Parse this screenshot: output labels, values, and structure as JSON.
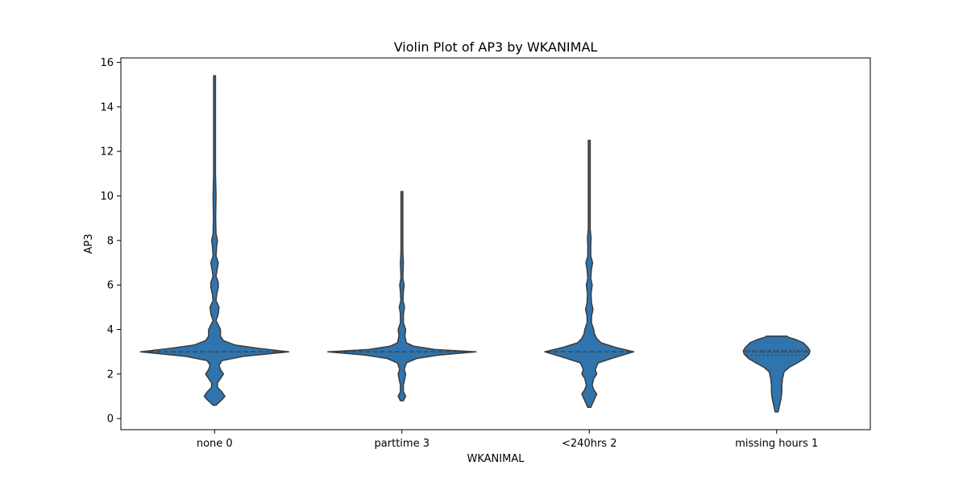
{
  "chart_data": {
    "type": "violin",
    "title": "Violin Plot of AP3 by WKANIMAL",
    "xlabel": "WKANIMAL",
    "ylabel": "AP3",
    "ylim": [
      -0.5,
      16.2
    ],
    "yticks": [
      0,
      2,
      4,
      6,
      8,
      10,
      12,
      14,
      16
    ],
    "grid": false,
    "legend": "none",
    "categories": [
      "none 0",
      "parttime 3",
      "<240hrs 2",
      "missing hours 1"
    ],
    "violin_color": "#2f74ad",
    "outline_color": "#3b3b3b",
    "violins": [
      {
        "category": "none 0",
        "y_min": 0.6,
        "y_max": 15.4,
        "median": 3,
        "quartiles": [
          3,
          3
        ],
        "density": [
          [
            0.6,
            0.02
          ],
          [
            0.85,
            0.1
          ],
          [
            1.0,
            0.14
          ],
          [
            1.2,
            0.1
          ],
          [
            1.4,
            0.04
          ],
          [
            1.6,
            0.04
          ],
          [
            1.8,
            0.08
          ],
          [
            2.0,
            0.12
          ],
          [
            2.2,
            0.08
          ],
          [
            2.4,
            0.06
          ],
          [
            2.6,
            0.1
          ],
          [
            2.8,
            0.4
          ],
          [
            3.0,
            1.0
          ],
          [
            3.15,
            0.6
          ],
          [
            3.3,
            0.28
          ],
          [
            3.5,
            0.12
          ],
          [
            3.7,
            0.08
          ],
          [
            3.9,
            0.08
          ],
          [
            4.0,
            0.08
          ],
          [
            4.2,
            0.05
          ],
          [
            4.4,
            0.02
          ],
          [
            4.7,
            0.05
          ],
          [
            5.0,
            0.06
          ],
          [
            5.3,
            0.02
          ],
          [
            5.6,
            0.03
          ],
          [
            5.9,
            0.05
          ],
          [
            6.1,
            0.05
          ],
          [
            6.4,
            0.02
          ],
          [
            6.8,
            0.04
          ],
          [
            7.0,
            0.05
          ],
          [
            7.3,
            0.02
          ],
          [
            7.8,
            0.03
          ],
          [
            8.0,
            0.04
          ],
          [
            8.3,
            0.02
          ],
          [
            9.0,
            0.015
          ],
          [
            10.0,
            0.02
          ],
          [
            11.0,
            0.012
          ],
          [
            12.0,
            0.01
          ],
          [
            13.0,
            0.01
          ],
          [
            14.0,
            0.01
          ],
          [
            15.4,
            0.01
          ]
        ]
      },
      {
        "category": "parttime 3",
        "y_min": 0.8,
        "y_max": 10.2,
        "median": 3,
        "quartiles": [
          3,
          3
        ],
        "density": [
          [
            0.8,
            0.02
          ],
          [
            1.0,
            0.05
          ],
          [
            1.2,
            0.02
          ],
          [
            1.5,
            0.02
          ],
          [
            1.8,
            0.04
          ],
          [
            2.0,
            0.05
          ],
          [
            2.2,
            0.03
          ],
          [
            2.5,
            0.06
          ],
          [
            2.7,
            0.2
          ],
          [
            2.85,
            0.5
          ],
          [
            3.0,
            1.0
          ],
          [
            3.1,
            0.45
          ],
          [
            3.25,
            0.16
          ],
          [
            3.4,
            0.06
          ],
          [
            3.7,
            0.04
          ],
          [
            4.0,
            0.05
          ],
          [
            4.3,
            0.02
          ],
          [
            4.7,
            0.02
          ],
          [
            5.0,
            0.035
          ],
          [
            5.3,
            0.015
          ],
          [
            5.7,
            0.02
          ],
          [
            6.0,
            0.03
          ],
          [
            6.3,
            0.012
          ],
          [
            7.0,
            0.02
          ],
          [
            7.5,
            0.01
          ],
          [
            8.5,
            0.01
          ],
          [
            9.5,
            0.01
          ],
          [
            10.2,
            0.01
          ]
        ]
      },
      {
        "category": "<240hrs 2",
        "y_min": 0.5,
        "y_max": 12.5,
        "median": 3,
        "quartiles": [
          3,
          3
        ],
        "density": [
          [
            0.5,
            0.02
          ],
          [
            0.8,
            0.06
          ],
          [
            1.1,
            0.1
          ],
          [
            1.3,
            0.06
          ],
          [
            1.5,
            0.04
          ],
          [
            1.8,
            0.06
          ],
          [
            2.0,
            0.1
          ],
          [
            2.2,
            0.08
          ],
          [
            2.5,
            0.12
          ],
          [
            2.7,
            0.3
          ],
          [
            3.0,
            0.6
          ],
          [
            3.2,
            0.35
          ],
          [
            3.4,
            0.16
          ],
          [
            3.6,
            0.1
          ],
          [
            3.8,
            0.07
          ],
          [
            4.0,
            0.06
          ],
          [
            4.3,
            0.03
          ],
          [
            4.6,
            0.03
          ],
          [
            4.9,
            0.05
          ],
          [
            5.2,
            0.03
          ],
          [
            5.6,
            0.025
          ],
          [
            6.0,
            0.04
          ],
          [
            6.3,
            0.02
          ],
          [
            6.7,
            0.03
          ],
          [
            7.0,
            0.045
          ],
          [
            7.3,
            0.02
          ],
          [
            7.8,
            0.02
          ],
          [
            8.1,
            0.025
          ],
          [
            8.5,
            0.01
          ],
          [
            10.0,
            0.01
          ],
          [
            11.5,
            0.01
          ],
          [
            12.5,
            0.01
          ]
        ]
      },
      {
        "category": "missing hours 1",
        "y_min": 0.3,
        "y_max": 3.7,
        "median": 3,
        "quartiles": [
          2.85,
          3.05
        ],
        "density": [
          [
            0.3,
            0.02
          ],
          [
            0.6,
            0.04
          ],
          [
            0.9,
            0.06
          ],
          [
            1.2,
            0.07
          ],
          [
            1.5,
            0.07
          ],
          [
            1.8,
            0.08
          ],
          [
            2.1,
            0.1
          ],
          [
            2.3,
            0.17
          ],
          [
            2.5,
            0.28
          ],
          [
            2.7,
            0.38
          ],
          [
            2.9,
            0.44
          ],
          [
            3.05,
            0.45
          ],
          [
            3.2,
            0.42
          ],
          [
            3.4,
            0.36
          ],
          [
            3.55,
            0.26
          ],
          [
            3.65,
            0.16
          ],
          [
            3.7,
            0.14
          ]
        ]
      }
    ]
  }
}
